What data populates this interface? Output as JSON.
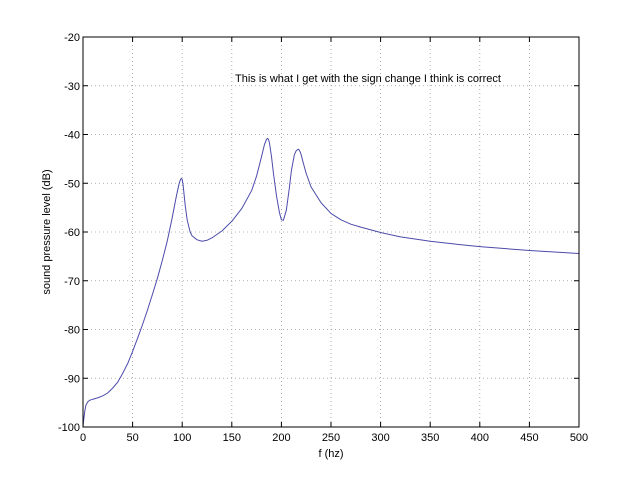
{
  "chart_data": {
    "type": "line",
    "title": "",
    "xlabel": "f (hz)",
    "ylabel": "sound pressure level (dB)",
    "xlim": [
      0,
      500
    ],
    "ylim": [
      -100,
      -20
    ],
    "xticks": [
      0,
      50,
      100,
      150,
      200,
      250,
      300,
      350,
      400,
      450,
      500
    ],
    "yticks": [
      -100,
      -90,
      -80,
      -70,
      -60,
      -50,
      -40,
      -30,
      -20
    ],
    "xtick_labels": [
      "0",
      "50",
      "100",
      "150",
      "200",
      "250",
      "300",
      "350",
      "400",
      "450",
      "500"
    ],
    "ytick_labels": [
      "-100",
      "-90",
      "-80",
      "-70",
      "-60",
      "-50",
      "-40",
      "-30",
      "-20"
    ],
    "grid": true,
    "annotation": "This is what I get with the sign change I think is correct",
    "line_color": "#4b4bab",
    "series": [
      {
        "x": [
          0,
          1,
          2,
          3,
          5,
          7,
          10,
          15,
          20,
          25,
          30,
          35,
          40,
          45,
          50,
          55,
          60,
          65,
          70,
          75,
          80,
          85,
          90,
          93,
          95,
          97,
          98,
          99,
          100,
          101,
          102,
          103,
          105,
          108,
          110,
          115,
          120,
          125,
          130,
          140,
          150,
          160,
          170,
          175,
          180,
          183,
          185,
          186,
          187,
          188,
          190,
          192,
          195,
          198,
          200,
          202,
          205,
          208,
          210,
          213,
          215,
          217,
          218,
          219,
          220,
          222,
          225,
          230,
          240,
          250,
          260,
          270,
          280,
          300,
          320,
          350,
          380,
          400,
          450,
          500
        ],
        "y": [
          -100,
          -98,
          -96.5,
          -95.5,
          -94.8,
          -94.5,
          -94.3,
          -94.0,
          -93.6,
          -93.0,
          -92.0,
          -90.8,
          -89.0,
          -87.0,
          -84.5,
          -81.8,
          -79.0,
          -76.0,
          -72.8,
          -69.5,
          -65.8,
          -61.8,
          -57.0,
          -53.8,
          -51.8,
          -50.0,
          -49.4,
          -49.0,
          -49.2,
          -50.5,
          -52.5,
          -54.5,
          -57.5,
          -60.0,
          -60.8,
          -61.6,
          -61.9,
          -61.7,
          -61.2,
          -59.8,
          -57.8,
          -55.2,
          -51.5,
          -48.5,
          -44.5,
          -42.0,
          -41.0,
          -40.8,
          -41.0,
          -41.8,
          -44.5,
          -48.0,
          -52.5,
          -56.0,
          -57.5,
          -57.6,
          -55.5,
          -51.0,
          -47.5,
          -44.2,
          -43.3,
          -43.0,
          -43.2,
          -43.6,
          -44.2,
          -45.8,
          -48.0,
          -50.8,
          -54.0,
          -56.2,
          -57.5,
          -58.4,
          -59.0,
          -60.1,
          -61.0,
          -61.9,
          -62.6,
          -63.0,
          -63.8,
          -64.4
        ]
      }
    ]
  }
}
